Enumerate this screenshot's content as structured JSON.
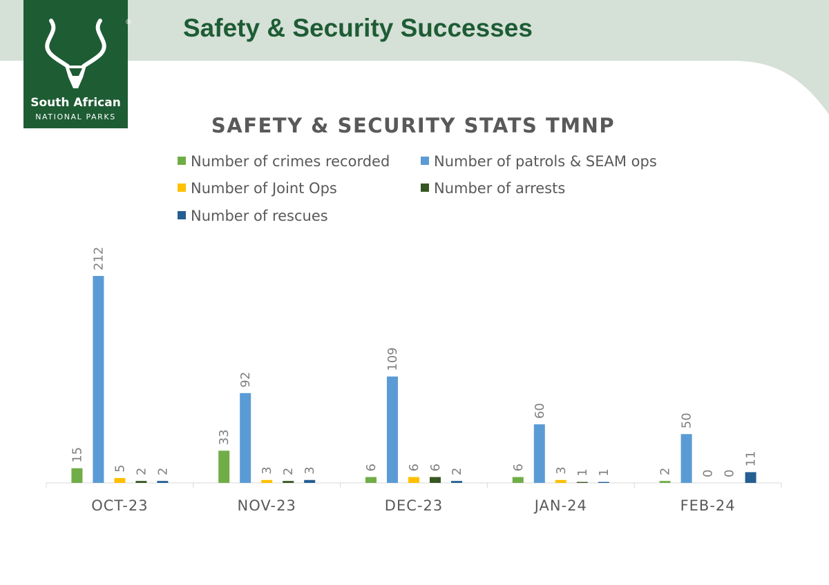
{
  "header": {
    "title": "Safety & Security Successes",
    "logo_line1": "South African",
    "logo_line2": "NATIONAL PARKS",
    "logo_reg": "®"
  },
  "colors": {
    "banner": "#d5e0d7",
    "logo_bg": "#1e5c34",
    "title": "#1e5c34"
  },
  "chart_data": {
    "type": "bar",
    "title": "SAFETY & SECURITY STATS TMNP",
    "categories": [
      "OCT-23",
      "NOV-23",
      "DEC-23",
      "JAN-24",
      "FEB-24"
    ],
    "series": [
      {
        "name": "Number of crimes recorded",
        "color": "#70ad47",
        "values": [
          15,
          33,
          6,
          6,
          2
        ]
      },
      {
        "name": "Number of patrols & SEAM ops",
        "color": "#5b9bd5",
        "values": [
          212,
          92,
          109,
          60,
          50
        ]
      },
      {
        "name": "Number of Joint Ops",
        "color": "#ffc000",
        "values": [
          5,
          3,
          6,
          3,
          0
        ]
      },
      {
        "name": "Number of arrests",
        "color": "#375623",
        "values": [
          2,
          2,
          6,
          1,
          0
        ]
      },
      {
        "name": "Number of rescues",
        "color": "#255e91",
        "values": [
          2,
          3,
          2,
          1,
          11
        ]
      }
    ],
    "legend_position": "top",
    "data_labels": true,
    "grid": false,
    "ylim": [
      0,
      212
    ]
  }
}
